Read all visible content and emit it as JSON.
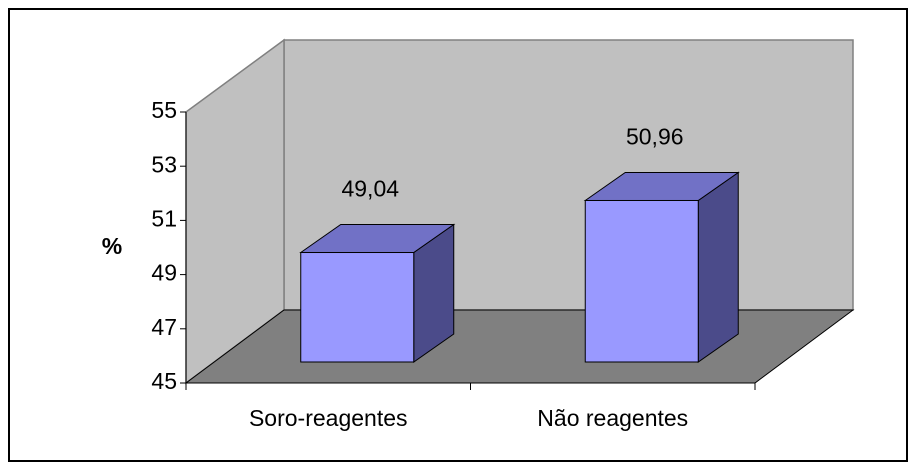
{
  "chart_data": {
    "type": "bar3d",
    "y_label": "%",
    "categories": [
      "Soro-reagentes",
      "Não reagentes"
    ],
    "values": [
      49.04,
      50.96
    ],
    "value_labels": [
      "49,04",
      "50,96"
    ],
    "color": "#9999ff",
    "ylim": [
      45,
      55
    ],
    "yticks": [
      45,
      47,
      49,
      51,
      53,
      55
    ]
  }
}
